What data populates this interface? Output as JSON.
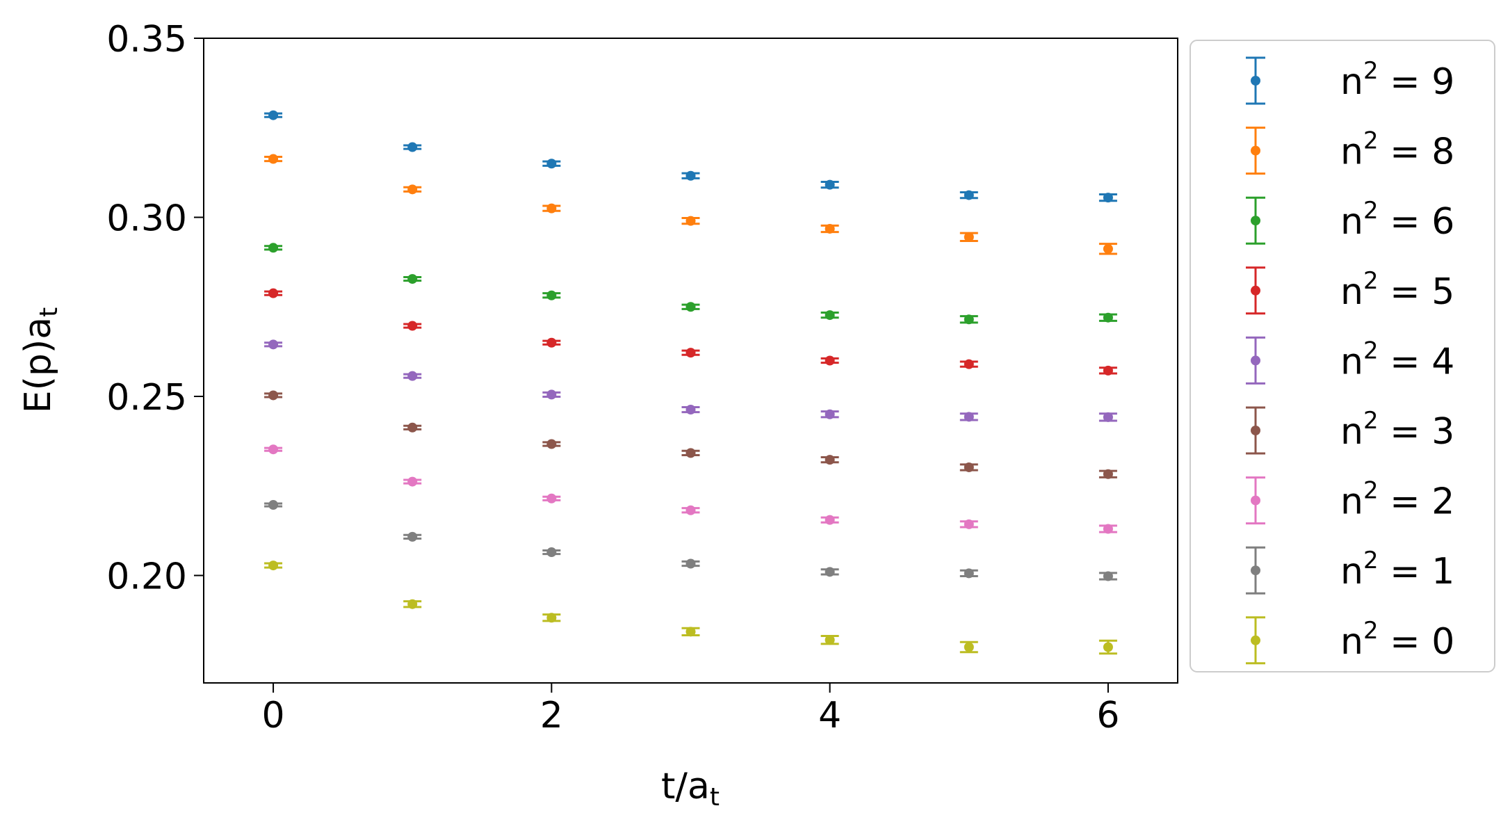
{
  "chart_data": {
    "type": "scatter",
    "title": "",
    "xlabel": "t/a_t",
    "ylabel": "E(p)a_t",
    "xlim": [
      -0.5,
      6.5
    ],
    "ylim": [
      0.17,
      0.35
    ],
    "xticks": [
      0,
      2,
      4,
      6
    ],
    "yticks": [
      0.2,
      0.25,
      0.3,
      0.35
    ],
    "xtick_labels": [
      "0",
      "2",
      "4",
      "6"
    ],
    "ytick_labels": [
      "0.20",
      "0.25",
      "0.30",
      "0.35"
    ],
    "grid": false,
    "legend_position": "outside-right",
    "x": [
      0,
      1,
      2,
      3,
      4,
      5,
      6
    ],
    "series": [
      {
        "name": "n² = 9",
        "label_base": "n",
        "label_sup": "2",
        "label_rest": " = 9",
        "color": "#1f77b4",
        "values": [
          0.3285,
          0.3196,
          0.315,
          0.3116,
          0.3091,
          0.3062,
          0.3055
        ],
        "errors": [
          0.0005,
          0.0005,
          0.0006,
          0.0007,
          0.0008,
          0.0008,
          0.0009
        ]
      },
      {
        "name": "n² = 8",
        "label_base": "n",
        "label_sup": "2",
        "label_rest": " = 8",
        "color": "#ff7f0e",
        "values": [
          0.3163,
          0.3078,
          0.3025,
          0.299,
          0.2968,
          0.2945,
          0.2912
        ],
        "errors": [
          0.0006,
          0.0006,
          0.0007,
          0.0008,
          0.0009,
          0.0011,
          0.0014
        ]
      },
      {
        "name": "n² = 6",
        "label_base": "n",
        "label_sup": "2",
        "label_rest": " = 6",
        "color": "#2ca02c",
        "values": [
          0.2915,
          0.2828,
          0.2782,
          0.275,
          0.2727,
          0.2715,
          0.272
        ],
        "errors": [
          0.0005,
          0.0005,
          0.0006,
          0.0006,
          0.0007,
          0.0009,
          0.0009
        ]
      },
      {
        "name": "n² = 5",
        "label_base": "n",
        "label_sup": "2",
        "label_rest": " = 5",
        "color": "#d62728",
        "values": [
          0.2788,
          0.2697,
          0.265,
          0.2622,
          0.26,
          0.259,
          0.2572
        ],
        "errors": [
          0.0005,
          0.0005,
          0.0005,
          0.0006,
          0.0006,
          0.0007,
          0.0008
        ]
      },
      {
        "name": "n² = 4",
        "label_base": "n",
        "label_sup": "2",
        "label_rest": " = 4",
        "color": "#9467bd",
        "values": [
          0.2645,
          0.2557,
          0.2505,
          0.2463,
          0.245,
          0.2443,
          0.2442
        ],
        "errors": [
          0.0005,
          0.0005,
          0.0006,
          0.0007,
          0.0008,
          0.0009,
          0.001
        ]
      },
      {
        "name": "n² = 3",
        "label_base": "n",
        "label_sup": "2",
        "label_rest": " = 3",
        "color": "#8c564b",
        "values": [
          0.2503,
          0.2413,
          0.2367,
          0.2342,
          0.2323,
          0.2302,
          0.2283
        ],
        "errors": [
          0.0005,
          0.0005,
          0.0005,
          0.0006,
          0.0007,
          0.0008,
          0.0009
        ]
      },
      {
        "name": "n² = 2",
        "label_base": "n",
        "label_sup": "2",
        "label_rest": " = 2",
        "color": "#e377c2",
        "values": [
          0.2352,
          0.2262,
          0.2215,
          0.2182,
          0.2155,
          0.2143,
          0.213
        ],
        "errors": [
          0.0004,
          0.0005,
          0.0005,
          0.0006,
          0.0007,
          0.0008,
          0.0009
        ]
      },
      {
        "name": "n² = 1",
        "label_base": "n",
        "label_sup": "2",
        "label_rest": " = 1",
        "color": "#7f7f7f",
        "values": [
          0.2197,
          0.2108,
          0.2065,
          0.2033,
          0.201,
          0.2006,
          0.1998
        ],
        "errors": [
          0.0004,
          0.0005,
          0.0005,
          0.0006,
          0.0007,
          0.0008,
          0.0009
        ]
      },
      {
        "name": "n² = 0",
        "label_base": "n",
        "label_sup": "2",
        "label_rest": " = 0",
        "color": "#bcbd22",
        "values": [
          0.2028,
          0.192,
          0.1882,
          0.1843,
          0.182,
          0.18,
          0.18
        ],
        "errors": [
          0.0006,
          0.0008,
          0.0009,
          0.001,
          0.0011,
          0.0014,
          0.0018
        ]
      }
    ]
  }
}
